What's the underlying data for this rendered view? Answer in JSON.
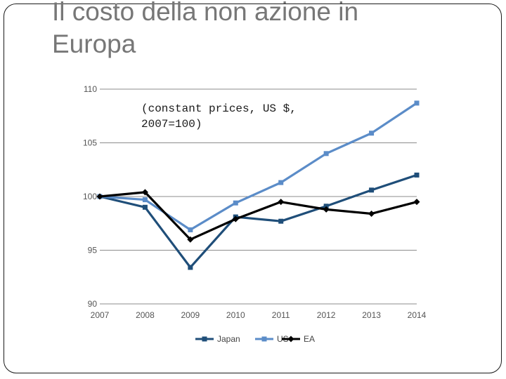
{
  "slide": {
    "title": "Il costo della non azione in Europa"
  },
  "chart_data": {
    "type": "line",
    "title": "",
    "note": [
      "(constant prices, US $,",
      "2007=100)"
    ],
    "x": [
      "2007",
      "2008",
      "2009",
      "2010",
      "2011",
      "2012",
      "2013",
      "2014"
    ],
    "ylim": [
      90,
      110
    ],
    "yticks": [
      90,
      95,
      100,
      105,
      110
    ],
    "xlabel": "",
    "ylabel": "",
    "grid": true,
    "legend_position": "bottom-center",
    "series": [
      {
        "name": "Japan",
        "color": "#1f4e79",
        "marker": "square",
        "values": [
          100,
          99,
          93.4,
          98.1,
          97.7,
          99.1,
          100.6,
          102
        ]
      },
      {
        "name": "US",
        "color": "#5b8cc8",
        "marker": "square",
        "values": [
          100,
          99.7,
          96.9,
          99.4,
          101.3,
          104,
          105.9,
          108.7
        ]
      },
      {
        "name": "EA",
        "color": "#000000",
        "marker": "diamond",
        "values": [
          100,
          100.4,
          96,
          97.9,
          99.5,
          98.8,
          98.4,
          99.5
        ]
      }
    ]
  }
}
